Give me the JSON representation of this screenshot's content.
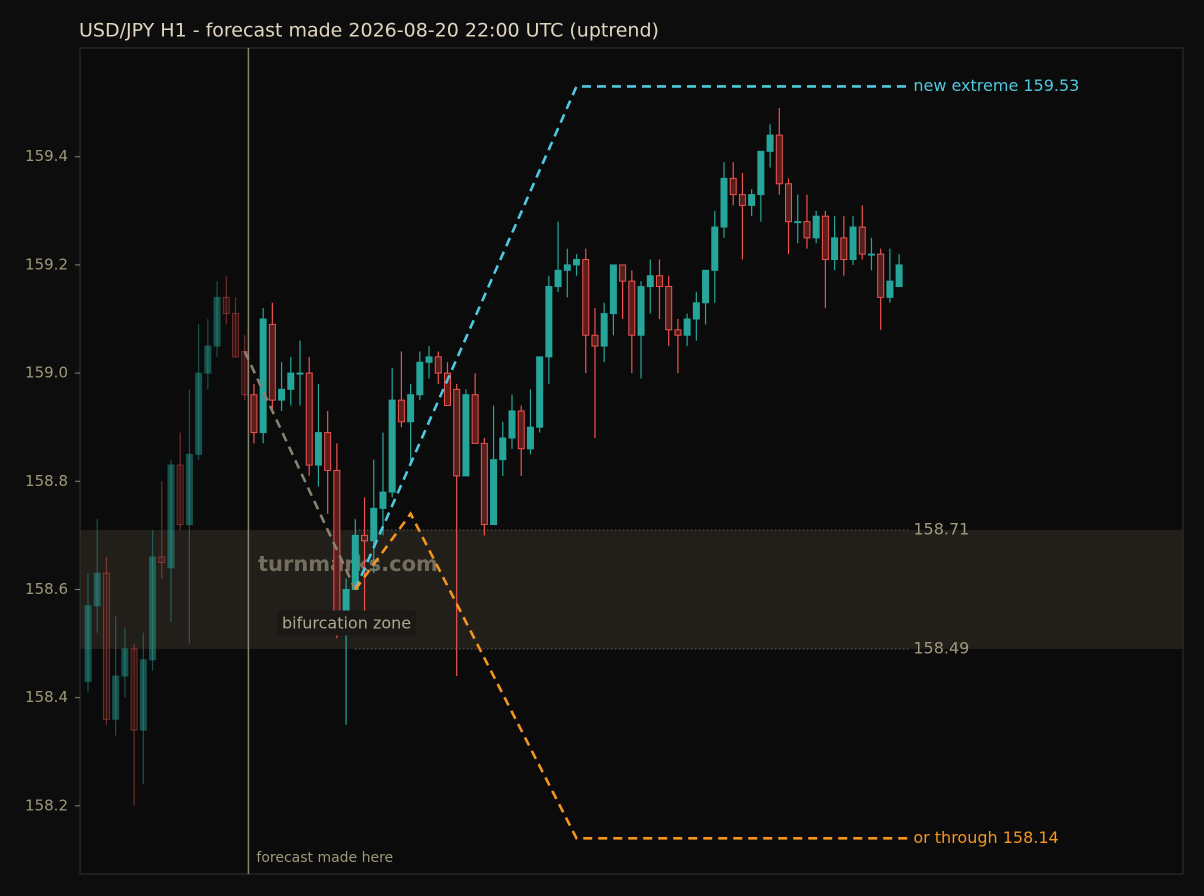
{
  "chart_data": {
    "type": "candlestick",
    "title": "USD/JPY H1 - forecast made 2026-08-20 22:00 UTC (uptrend)",
    "open": [
      158.43,
      158.57,
      158.63,
      158.36,
      158.44,
      158.49,
      158.34,
      158.47,
      158.66,
      158.64,
      158.83,
      158.72,
      158.85,
      159.0,
      159.05,
      159.14,
      159.11,
      159.04,
      158.96,
      158.89,
      159.09,
      158.95,
      158.97,
      159.0,
      159.0,
      158.83,
      158.89,
      158.82,
      158.54,
      158.6,
      158.7,
      158.69,
      158.75,
      158.78,
      158.95,
      158.91,
      158.96,
      159.02,
      159.03,
      159.0,
      158.97,
      158.81,
      158.96,
      158.87,
      158.72,
      158.84,
      158.88,
      158.93,
      158.86,
      158.9,
      159.03,
      159.16,
      159.19,
      159.2,
      159.21,
      159.07,
      159.05,
      159.11,
      159.2,
      159.17,
      159.07,
      159.16,
      159.18,
      159.16,
      159.08,
      159.07,
      159.1,
      159.13,
      159.19,
      159.27,
      159.36,
      159.33,
      159.31,
      159.33,
      159.41,
      159.44,
      159.35,
      159.28,
      159.28,
      159.25,
      159.29,
      159.21,
      159.25,
      159.21,
      159.27,
      159.22,
      159.22,
      159.14,
      159.16
    ],
    "high": [
      158.63,
      158.73,
      158.66,
      158.55,
      158.53,
      158.5,
      158.52,
      158.71,
      158.8,
      158.84,
      158.89,
      158.97,
      159.09,
      159.1,
      159.17,
      159.18,
      159.14,
      159.07,
      158.98,
      159.12,
      159.13,
      159.02,
      159.03,
      159.06,
      159.03,
      158.98,
      158.93,
      158.87,
      158.62,
      158.73,
      158.77,
      158.84,
      158.89,
      159.01,
      159.04,
      158.98,
      159.04,
      159.05,
      159.04,
      159.02,
      158.98,
      158.97,
      159.0,
      158.88,
      158.94,
      158.91,
      158.96,
      158.94,
      158.97,
      159.03,
      159.18,
      159.28,
      159.23,
      159.22,
      159.23,
      159.12,
      159.13,
      159.2,
      159.2,
      159.19,
      159.17,
      159.21,
      159.21,
      159.18,
      159.1,
      159.11,
      159.15,
      159.19,
      159.3,
      159.39,
      159.39,
      159.37,
      159.34,
      159.41,
      159.46,
      159.49,
      159.36,
      159.33,
      159.33,
      159.3,
      159.3,
      159.29,
      159.29,
      159.29,
      159.31,
      159.25,
      159.23,
      159.23,
      159.22
    ],
    "low": [
      158.41,
      158.52,
      158.35,
      158.33,
      158.4,
      158.2,
      158.24,
      158.45,
      158.62,
      158.54,
      158.71,
      158.5,
      158.84,
      158.97,
      159.03,
      159.09,
      159.03,
      158.95,
      158.87,
      158.87,
      158.93,
      158.93,
      158.94,
      158.94,
      158.81,
      158.79,
      158.74,
      158.51,
      158.35,
      158.6,
      158.55,
      158.63,
      158.7,
      158.77,
      158.9,
      158.83,
      158.95,
      158.99,
      158.98,
      158.94,
      158.44,
      158.81,
      158.87,
      158.7,
      158.72,
      158.81,
      158.86,
      158.81,
      158.85,
      158.89,
      158.98,
      159.15,
      159.14,
      159.18,
      159.0,
      158.88,
      159.02,
      159.07,
      159.1,
      159.0,
      158.99,
      159.11,
      159.1,
      159.05,
      159.0,
      159.05,
      159.06,
      159.09,
      159.13,
      159.25,
      159.31,
      159.21,
      159.29,
      159.28,
      159.38,
      159.33,
      159.22,
      159.24,
      159.23,
      159.24,
      159.12,
      159.19,
      159.18,
      159.2,
      159.21,
      159.19,
      159.08,
      159.13,
      159.16
    ],
    "close": [
      158.57,
      158.63,
      158.36,
      158.44,
      158.49,
      158.34,
      158.47,
      158.66,
      158.65,
      158.83,
      158.72,
      158.85,
      159.0,
      159.05,
      159.14,
      159.11,
      159.03,
      158.96,
      158.89,
      159.1,
      158.95,
      158.97,
      159.0,
      159.0,
      158.83,
      158.89,
      158.82,
      158.54,
      158.6,
      158.7,
      158.69,
      158.75,
      158.78,
      158.95,
      158.91,
      158.96,
      159.02,
      159.03,
      159.0,
      158.94,
      158.81,
      158.96,
      158.87,
      158.72,
      158.84,
      158.88,
      158.93,
      158.86,
      158.9,
      159.03,
      159.16,
      159.19,
      159.2,
      159.21,
      159.07,
      159.05,
      159.11,
      159.2,
      159.17,
      159.07,
      159.16,
      159.18,
      159.16,
      159.08,
      159.07,
      159.1,
      159.13,
      159.19,
      159.27,
      159.36,
      159.33,
      159.31,
      159.33,
      159.41,
      159.44,
      159.35,
      159.28,
      159.28,
      159.25,
      159.29,
      159.21,
      159.25,
      159.21,
      159.27,
      159.22,
      159.22,
      159.14,
      159.17,
      159.2
    ],
    "up_color": "#26a69a",
    "down_color": "#ef5350",
    "xlim": [
      -0.87,
      118.8
    ],
    "ylim": [
      158.074,
      159.601
    ],
    "yticks": [
      158.2,
      158.4,
      158.6,
      158.8,
      {
        "value": 159,
        "label": "159.0"
      },
      159.2,
      159.4
    ],
    "forecast_x": 17.4,
    "forecast_label": "forecast made here",
    "zone": {
      "values": [
        158.49,
        158.71
      ],
      "label": "bifurcation zone"
    },
    "levels": [
      {
        "value": 158.71,
        "label": "158.71"
      },
      {
        "value": 158.49,
        "label": "158.49"
      }
    ],
    "paths": [
      {
        "name": "base",
        "color": "#8a8270",
        "x": [
          17,
          29
        ],
        "values": [
          159.04,
          158.6
        ]
      },
      {
        "name": "up",
        "color": "#4ec9e0",
        "x": [
          29,
          53,
          89
        ],
        "values": [
          158.6,
          159.53,
          159.53
        ],
        "label": "new extreme 159.53"
      },
      {
        "name": "down",
        "color": "#f5961e",
        "x": [
          29,
          35,
          53,
          89
        ],
        "values": [
          158.6,
          158.74,
          158.14,
          158.14
        ],
        "label": "or through 158.14"
      }
    ],
    "watermark": "turnmarks.com"
  }
}
